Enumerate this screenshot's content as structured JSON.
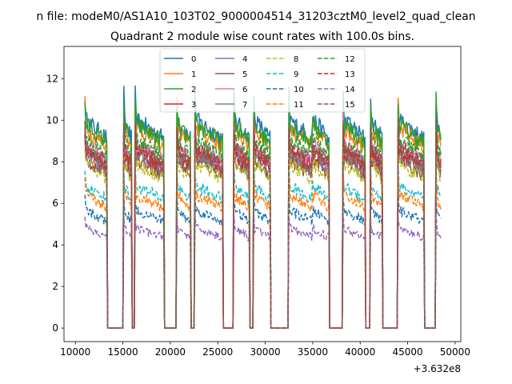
{
  "chart_data": {
    "type": "line",
    "suptitle": "n file: modeM0/AS1A10_103T02_9000004514_31203cztM0_level2_quad_clean",
    "title": "Quadrant 2 module wise count rates with 100.0s bins.",
    "xlabel": "",
    "ylabel": "",
    "x_offset_label": "+3.632e8",
    "xlim": [
      8800,
      50600
    ],
    "ylim": [
      -0.65,
      13.55
    ],
    "xticks": [
      10000,
      15000,
      20000,
      25000,
      30000,
      35000,
      40000,
      45000,
      50000
    ],
    "yticks": [
      0,
      2,
      4,
      6,
      8,
      10,
      12
    ],
    "legend_location": "upper center",
    "on_segments": [
      [
        11000,
        13300
      ],
      [
        15100,
        15900
      ],
      [
        16300,
        19300
      ],
      [
        20700,
        22100
      ],
      [
        22600,
        25500
      ],
      [
        26700,
        28300
      ],
      [
        28800,
        30500
      ],
      [
        32500,
        34900
      ],
      [
        35000,
        36700
      ],
      [
        38200,
        40500
      ],
      [
        41100,
        42300
      ],
      [
        44000,
        46700
      ],
      [
        48000,
        48500
      ]
    ],
    "series": [
      {
        "name": "0",
        "level": 9.4,
        "color": "#1f77b4",
        "dash": "solid"
      },
      {
        "name": "1",
        "level": 9.0,
        "color": "#ff7f0e",
        "dash": "solid"
      },
      {
        "name": "2",
        "level": 9.2,
        "color": "#2ca02c",
        "dash": "solid"
      },
      {
        "name": "3",
        "level": 8.1,
        "color": "#d62728",
        "dash": "solid"
      },
      {
        "name": "4",
        "level": 7.8,
        "color": "#9467bd",
        "dash": "solid"
      },
      {
        "name": "5",
        "level": 7.6,
        "color": "#8c564b",
        "dash": "solid"
      },
      {
        "name": "6",
        "level": 8.3,
        "color": "#e377c2",
        "dash": "solid"
      },
      {
        "name": "7",
        "level": 7.9,
        "color": "#7f7f7f",
        "dash": "solid"
      },
      {
        "name": "8",
        "level": 7.4,
        "color": "#bcbd22",
        "dash": "dashed"
      },
      {
        "name": "9",
        "level": 6.4,
        "color": "#17becf",
        "dash": "dashed"
      },
      {
        "name": "10",
        "level": 5.3,
        "color": "#1f77b4",
        "dash": "dashed"
      },
      {
        "name": "11",
        "level": 6.0,
        "color": "#ff7f0e",
        "dash": "dashed"
      },
      {
        "name": "12",
        "level": 8.5,
        "color": "#2ca02c",
        "dash": "dashed"
      },
      {
        "name": "13",
        "level": 8.0,
        "color": "#d62728",
        "dash": "dashed"
      },
      {
        "name": "14",
        "level": 4.5,
        "color": "#9467bd",
        "dash": "dashed"
      },
      {
        "name": "15",
        "level": 8.2,
        "color": "#8c564b",
        "dash": "dashed"
      }
    ]
  }
}
